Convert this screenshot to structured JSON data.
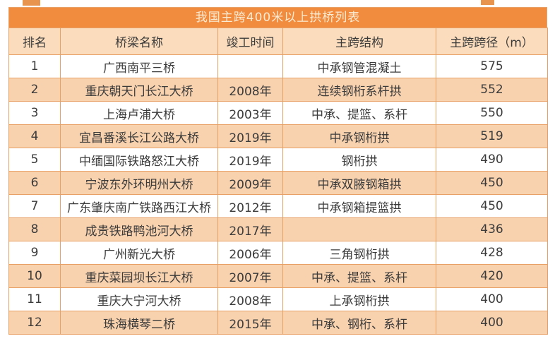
{
  "colors": {
    "page_bg": "#ffffff",
    "title_bar_bg": "#f18b3e",
    "title_text": "#fbebd3",
    "header_bg": "#fbdcbc",
    "stripe_bg": "#f8d2ae",
    "row_bg": "#ffffff",
    "border": "#e8a066",
    "cell_text": "#3b3b3b",
    "artifact": "#e8944e"
  },
  "chart_data": {
    "type": "table",
    "title": "我国主跨400米以上拱桥列表",
    "columns": [
      "排名",
      "桥梁名称",
      "竣工时间",
      "主跨结构",
      "主跨跨径（m）"
    ],
    "rows": [
      [
        "1",
        "广西南平三桥",
        "",
        "中承钢管混凝土",
        "575"
      ],
      [
        "2",
        "重庆朝天门长江大桥",
        "2008年",
        "连续钢桁系杆拱",
        "552"
      ],
      [
        "3",
        "上海卢浦大桥",
        "2003年",
        "中承、提篮、系杆",
        "550"
      ],
      [
        "4",
        "宜昌番溪长江公路大桥",
        "2019年",
        "中承钢桁拱",
        "519"
      ],
      [
        "5",
        "中缅国际铁路怒江大桥",
        "2019年",
        "钢桁拱",
        "490"
      ],
      [
        "6",
        "宁波东外环明州大桥",
        "2009年",
        "中承双腋钢箱拱",
        "450"
      ],
      [
        "7",
        "广东肇庆南广铁路西江大桥",
        "2012年",
        "中承钢箱提篮拱",
        "450"
      ],
      [
        "8",
        "成贵铁路鸭池河大桥",
        "2017年",
        "",
        "436"
      ],
      [
        "9",
        "广州新光大桥",
        "2006年",
        "三角钢桁拱",
        "428"
      ],
      [
        "10",
        "重庆菜园坝长江大桥",
        "2007年",
        "中承、提篮、系杆",
        "420"
      ],
      [
        "11",
        "重庆大宁河大桥",
        "2008年",
        "上承钢桁拱",
        "400"
      ],
      [
        "12",
        "珠海横琴二桥",
        "2015年",
        "中承、钢桁、系杆",
        "400"
      ]
    ]
  }
}
